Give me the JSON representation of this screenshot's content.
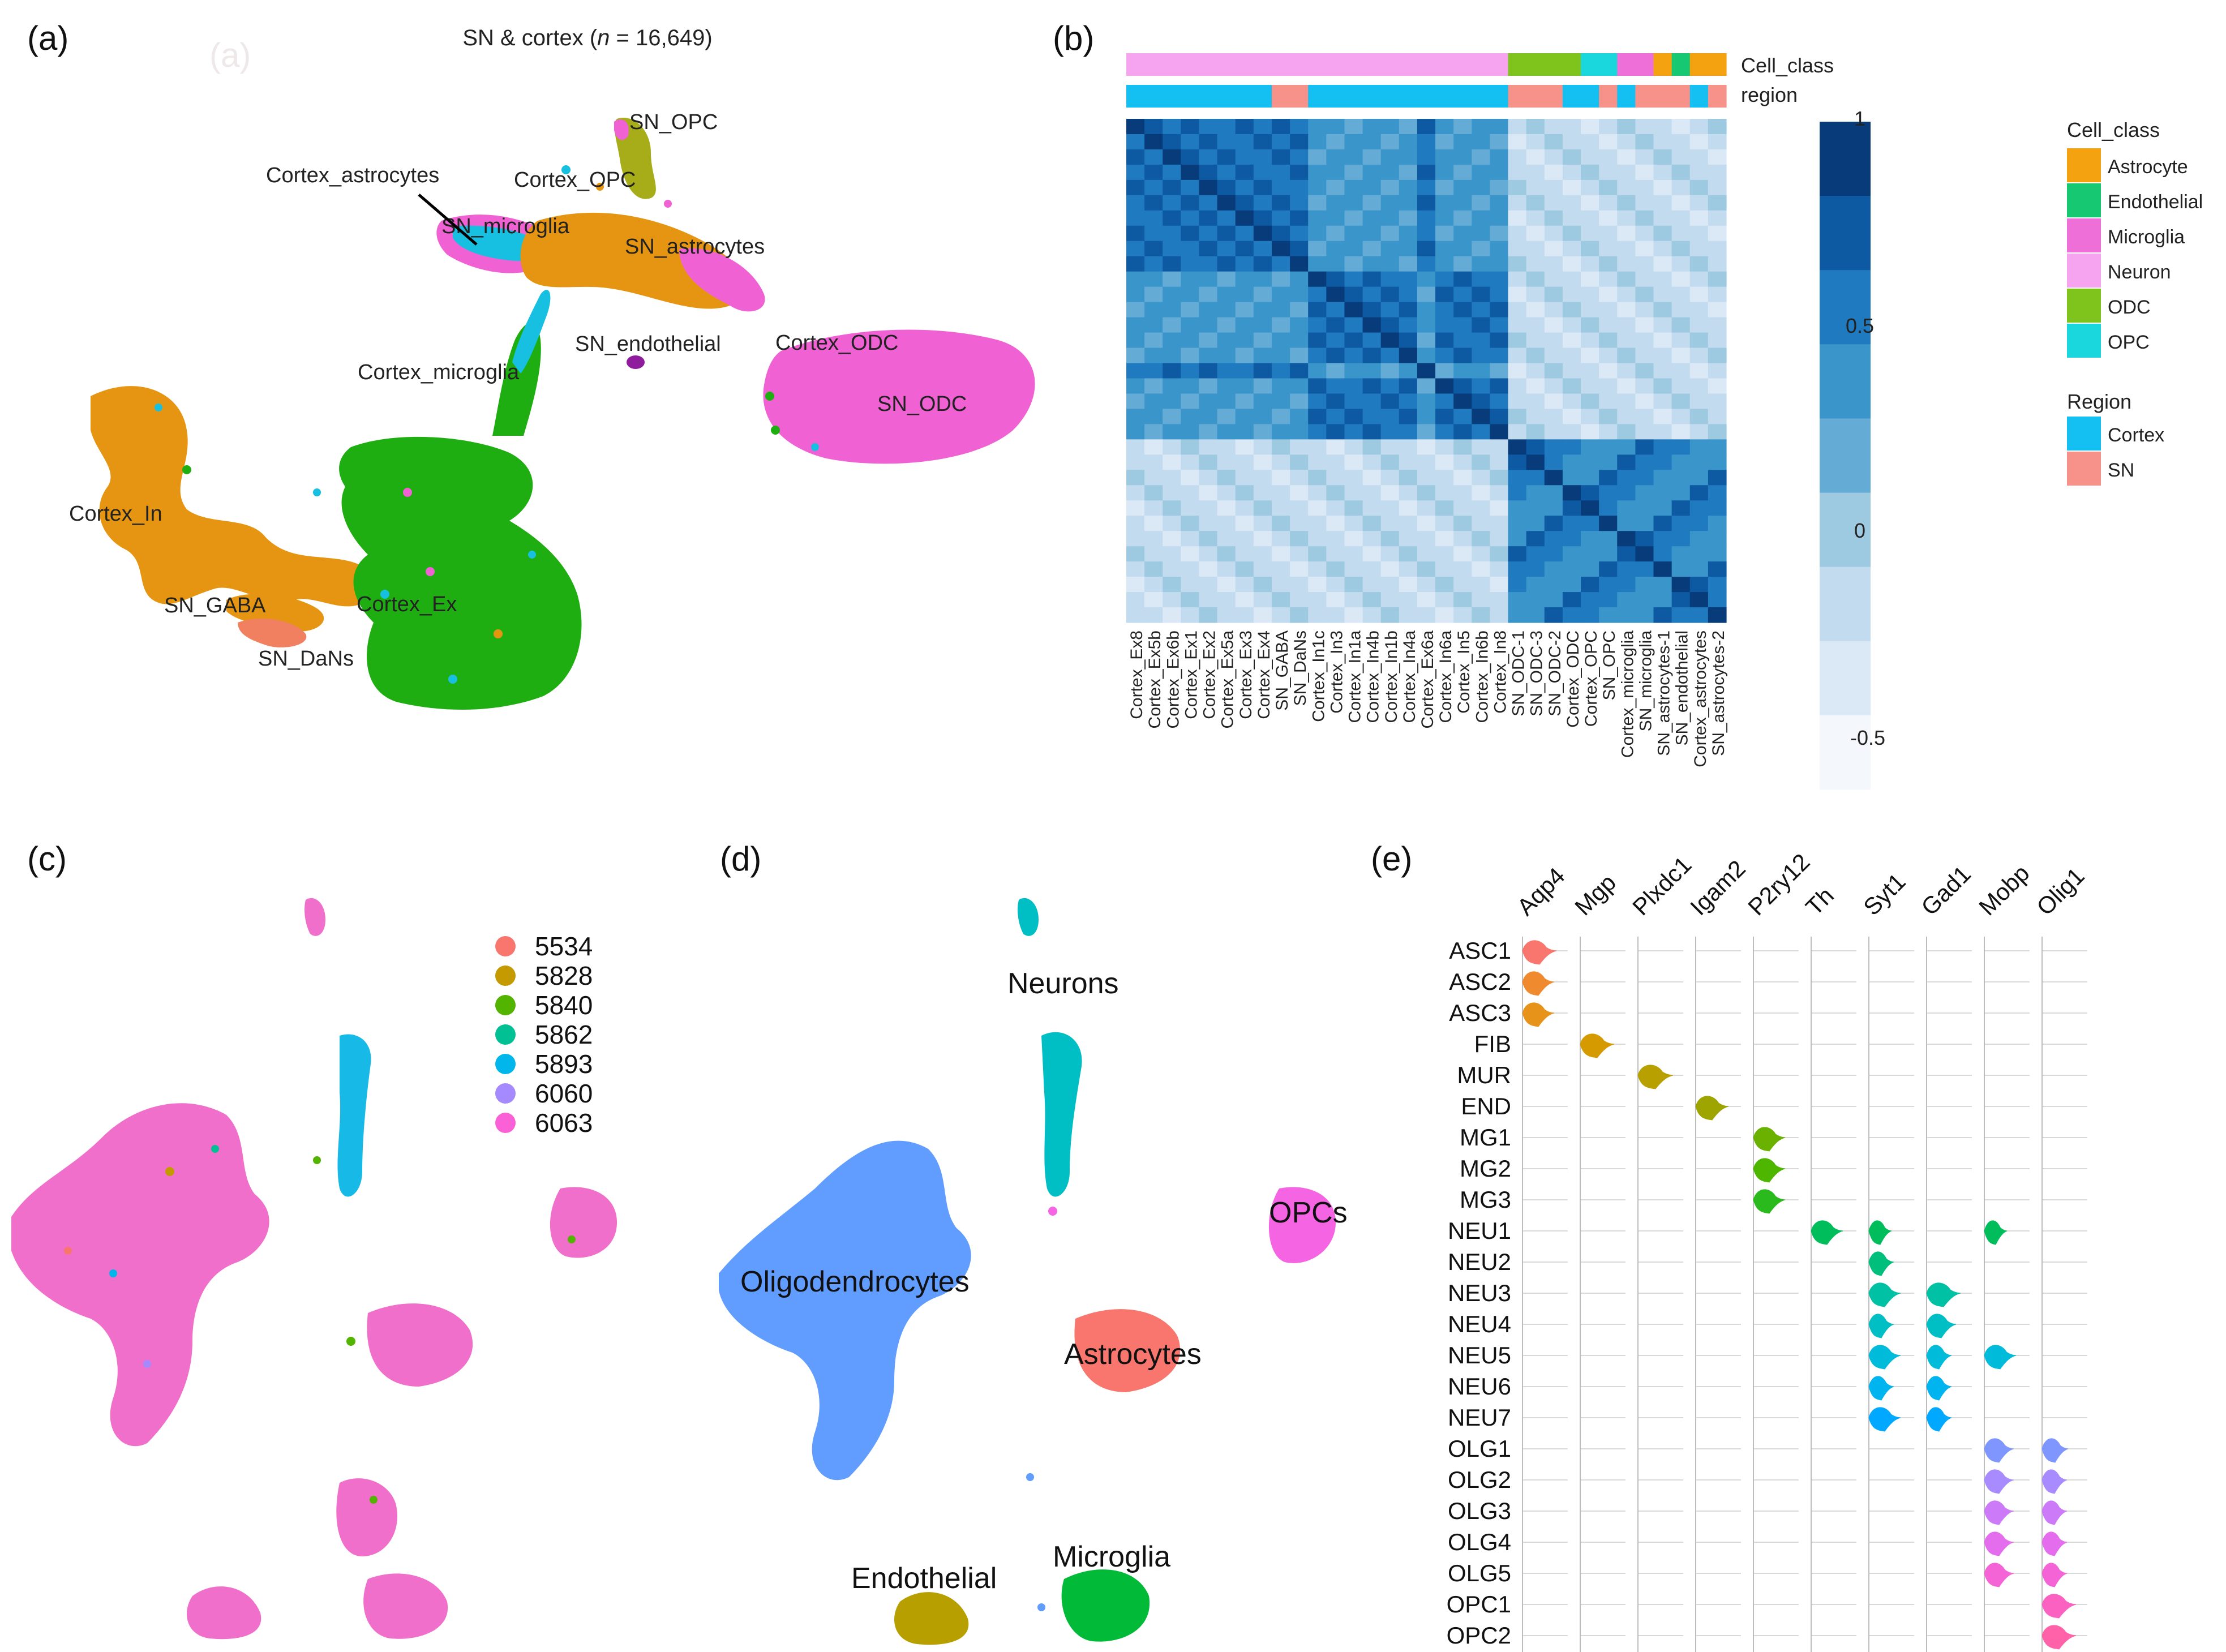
{
  "panel_labels": {
    "a": "(a)",
    "b": "(b)",
    "c": "(c)",
    "d": "(d)",
    "e": "(e)"
  },
  "panel_a": {
    "ghost_label": "(a)",
    "title_prefix": "SN & cortex (",
    "title_n": "n",
    "title_suffix": " = 16,649)",
    "clusters": [
      "SN_OPC",
      "Cortex_astrocytes",
      "Cortex_OPC",
      "SN_microglia",
      "SN_astrocytes",
      "SN_endothelial",
      "Cortex_ODC",
      "SN_ODC",
      "Cortex_microglia",
      "Cortex_In",
      "SN_GABA",
      "Cortex_Ex",
      "SN_DaNs"
    ],
    "colors": {
      "orange": "#e69512",
      "green": "#1fae11",
      "pink": "#f062d4",
      "olive": "#a6ad18",
      "cyan": "#17c0e0",
      "purple": "#8e1c9c",
      "blue": "#2a64c8"
    }
  },
  "panel_b": {
    "track_labels": [
      "Cell_class",
      "region"
    ],
    "columns": [
      "Cortex_Ex8",
      "Cortex_Ex5b",
      "Cortex_Ex6b",
      "Cortex_Ex1",
      "Cortex_Ex2",
      "Cortex_Ex5a",
      "Cortex_Ex3",
      "Cortex_Ex4",
      "SN_GABA",
      "SN_DaNs",
      "Cortex_In1c",
      "Cortex_In3",
      "Cortex_In1a",
      "Cortex_In4b",
      "Cortex_In1b",
      "Cortex_In4a",
      "Cortex_Ex6a",
      "Cortex_In6a",
      "Cortex_In5",
      "Cortex_In6b",
      "Cortex_In8",
      "SN_ODC-1",
      "SN_ODC-3",
      "SN_ODC-2",
      "Cortex_ODC",
      "Cortex_OPC",
      "SN_OPC",
      "Cortex_microglia",
      "SN_microglia",
      "SN_astrocytes-1",
      "SN_endothelial",
      "Cortex_astrocytes",
      "SN_astrocytes-2"
    ],
    "cell_class_track": [
      "Neuron",
      "Neuron",
      "Neuron",
      "Neuron",
      "Neuron",
      "Neuron",
      "Neuron",
      "Neuron",
      "Neuron",
      "Neuron",
      "Neuron",
      "Neuron",
      "Neuron",
      "Neuron",
      "Neuron",
      "Neuron",
      "Neuron",
      "Neuron",
      "Neuron",
      "Neuron",
      "Neuron",
      "ODC",
      "ODC",
      "ODC",
      "ODC",
      "OPC",
      "OPC",
      "Microglia",
      "Microglia",
      "Astrocyte",
      "Endothelial",
      "Astrocyte",
      "Astrocyte"
    ],
    "region_track": [
      "Cortex",
      "Cortex",
      "Cortex",
      "Cortex",
      "Cortex",
      "Cortex",
      "Cortex",
      "Cortex",
      "SN",
      "SN",
      "Cortex",
      "Cortex",
      "Cortex",
      "Cortex",
      "Cortex",
      "Cortex",
      "Cortex",
      "Cortex",
      "Cortex",
      "Cortex",
      "Cortex",
      "SN",
      "SN",
      "SN",
      "Cortex",
      "Cortex",
      "SN",
      "Cortex",
      "SN",
      "SN",
      "SN",
      "Cortex",
      "SN"
    ],
    "scale_ticks": [
      "1",
      "0.5",
      "0",
      "-0.5"
    ],
    "legend": {
      "cell_class_title": "Cell_class",
      "cell_classes": [
        {
          "name": "Astrocyte",
          "color": "#f4a20f"
        },
        {
          "name": "Endothelial",
          "color": "#16c872"
        },
        {
          "name": "Microglia",
          "color": "#ef6fd8"
        },
        {
          "name": "Neuron",
          "color": "#f6a3f0"
        },
        {
          "name": "ODC",
          "color": "#7fc41c"
        },
        {
          "name": "OPC",
          "color": "#1ad7de"
        }
      ],
      "region_title": "Region",
      "regions": [
        {
          "name": "Cortex",
          "color": "#14bff2"
        },
        {
          "name": "SN",
          "color": "#f7928a"
        }
      ]
    },
    "scale_colors": [
      "#f4f8fd",
      "#dbe9f6",
      "#c2dbef",
      "#9dcae1",
      "#64abd6",
      "#3a95cb",
      "#1f7abf",
      "#0d5aa3",
      "#083b7a"
    ]
  },
  "panel_c": {
    "legend": [
      {
        "label": "5534",
        "color": "#f8766d"
      },
      {
        "label": "5828",
        "color": "#c49a00"
      },
      {
        "label": "5840",
        "color": "#53b400"
      },
      {
        "label": "5862",
        "color": "#00c094"
      },
      {
        "label": "5893",
        "color": "#00b6eb"
      },
      {
        "label": "6060",
        "color": "#a58aff"
      },
      {
        "label": "6063",
        "color": "#fb61d7"
      }
    ]
  },
  "panel_d": {
    "labels": [
      "Neurons",
      "OPCs",
      "Oligodendrocytes",
      "Astrocytes",
      "Endothelial",
      "Microglia"
    ],
    "colors": {
      "oligo": "#619cff",
      "astro": "#f8766d",
      "opc": "#f564e3",
      "neuron": "#00bfc4",
      "endo": "#b79f00",
      "micro": "#00ba38"
    }
  },
  "panel_e": {
    "genes": [
      "Aqp4",
      "Mgp",
      "Plxdc1",
      "Igam2",
      "P2ry12",
      "Th",
      "Syt1",
      "Gad1",
      "Mobp",
      "Olig1"
    ],
    "cell_types": [
      "ASC1",
      "ASC2",
      "ASC3",
      "FIB",
      "MUR",
      "END",
      "MG1",
      "MG2",
      "MG3",
      "NEU1",
      "NEU2",
      "NEU3",
      "NEU4",
      "NEU5",
      "NEU6",
      "NEU7",
      "OLG1",
      "OLG2",
      "OLG3",
      "OLG4",
      "OLG5",
      "OPC1",
      "OPC2"
    ],
    "row_colors": [
      "#f8766d",
      "#f08a2e",
      "#e7931a",
      "#d49a00",
      "#b8a000",
      "#9fa500",
      "#6ab100",
      "#4fb600",
      "#2bba1d",
      "#00bd5c",
      "#00bf7d",
      "#00c1a3",
      "#00bfc4",
      "#00bbda",
      "#00b4ef",
      "#00a9ff",
      "#7f96ff",
      "#a88bff",
      "#cc7af8",
      "#e46ded",
      "#f564d6",
      "#fb61c0",
      "#ff62a8"
    ]
  }
}
